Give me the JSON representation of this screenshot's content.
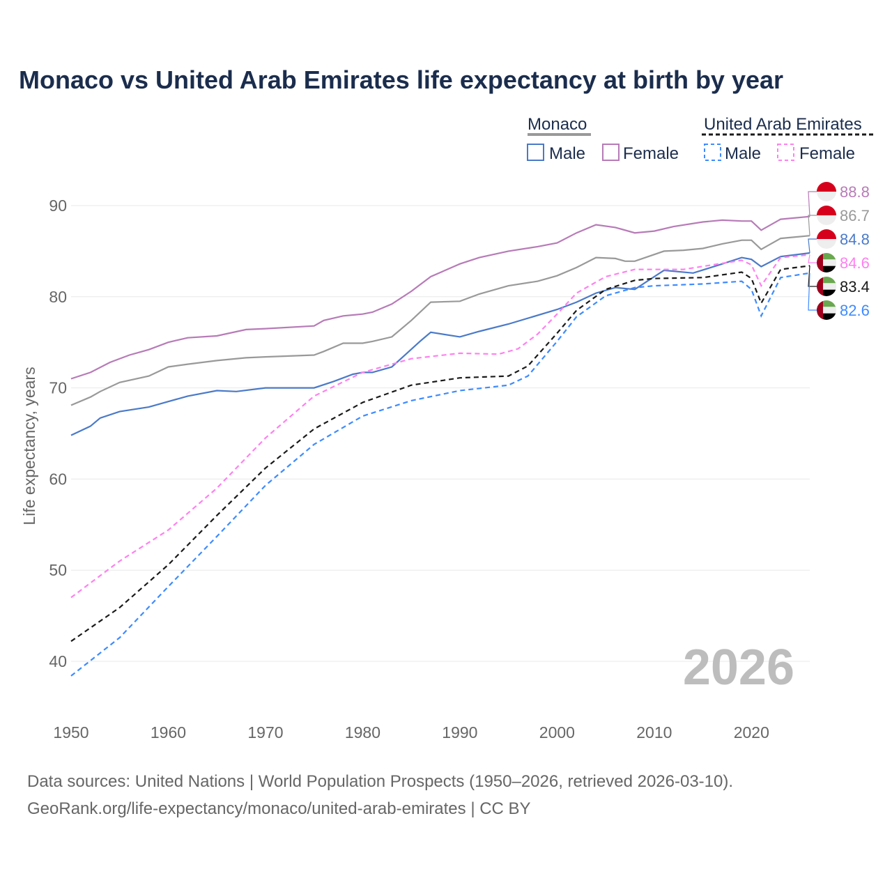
{
  "title": "Monaco vs United Arab Emirates life expectancy at birth by year",
  "footer": {
    "line1": "Data sources: United Nations | World Population Prospects (1950–2026, retrieved 2026-03-10).",
    "line2": "GeoRank.org/life-expectancy/monaco/united-arab-emirates | CC BY"
  },
  "year_watermark": "2026",
  "legend": {
    "group1": "Monaco",
    "group2": "United Arab Emirates",
    "male": "Male",
    "female": "Female"
  },
  "chart_data": {
    "type": "line",
    "title": "Monaco vs United Arab Emirates life expectancy at birth by year",
    "xlabel": "",
    "ylabel": "Life expectancy, years",
    "xlim": [
      1950,
      2026
    ],
    "ylim": [
      36,
      92
    ],
    "xticks": [
      1950,
      1960,
      1970,
      1980,
      1990,
      2000,
      2010,
      2020
    ],
    "yticks": [
      40,
      50,
      60,
      70,
      80,
      90
    ],
    "grid": true,
    "legend_position": "top-right",
    "series": [
      {
        "name": "Monaco Female",
        "color": "#b77bb7",
        "dash": false,
        "end_label": "88.8",
        "flag": "monaco",
        "x": [
          1950,
          1952,
          1954,
          1956,
          1958,
          1960,
          1962,
          1965,
          1968,
          1970,
          1975,
          1976,
          1978,
          1980,
          1981,
          1983,
          1985,
          1987,
          1990,
          1992,
          1995,
          1998,
          2000,
          2002,
          2004,
          2006,
          2008,
          2010,
          2012,
          2015,
          2017,
          2019,
          2020,
          2021,
          2023,
          2026
        ],
        "y": [
          71.0,
          71.7,
          72.8,
          73.6,
          74.2,
          75.0,
          75.5,
          75.7,
          76.4,
          76.5,
          76.8,
          77.4,
          77.9,
          78.1,
          78.3,
          79.2,
          80.6,
          82.2,
          83.6,
          84.3,
          85.0,
          85.5,
          85.9,
          87.0,
          87.9,
          87.6,
          87.0,
          87.2,
          87.7,
          88.2,
          88.4,
          88.3,
          88.3,
          87.3,
          88.5,
          88.8
        ]
      },
      {
        "name": "Monaco",
        "color": "#999999",
        "dash": false,
        "end_label": "86.7",
        "flag": "monaco",
        "x": [
          1950,
          1952,
          1953,
          1955,
          1958,
          1960,
          1962,
          1965,
          1968,
          1970,
          1975,
          1976,
          1978,
          1980,
          1981,
          1983,
          1985,
          1987,
          1990,
          1992,
          1995,
          1998,
          2000,
          2002,
          2004,
          2006,
          2007,
          2008,
          2011,
          2013,
          2015,
          2017,
          2019,
          2020,
          2021,
          2023,
          2026
        ],
        "y": [
          68.1,
          69.0,
          69.6,
          70.6,
          71.3,
          72.3,
          72.6,
          73.0,
          73.3,
          73.4,
          73.6,
          74.0,
          74.9,
          74.9,
          75.1,
          75.6,
          77.4,
          79.4,
          79.5,
          80.3,
          81.2,
          81.7,
          82.3,
          83.2,
          84.3,
          84.2,
          83.9,
          83.9,
          85.0,
          85.1,
          85.3,
          85.8,
          86.2,
          86.2,
          85.2,
          86.4,
          86.7
        ]
      },
      {
        "name": "Monaco Male",
        "color": "#4a7ac8",
        "dash": false,
        "end_label": "84.8",
        "flag": "monaco",
        "x": [
          1950,
          1952,
          1953,
          1955,
          1958,
          1960,
          1962,
          1965,
          1967,
          1970,
          1975,
          1977,
          1979,
          1980,
          1981,
          1983,
          1986,
          1987,
          1990,
          1992,
          1995,
          2000,
          2002,
          2004,
          2006,
          2008,
          2011,
          2014,
          2017,
          2019,
          2020,
          2021,
          2023,
          2026
        ],
        "y": [
          64.8,
          65.8,
          66.7,
          67.4,
          67.9,
          68.5,
          69.1,
          69.7,
          69.6,
          70.0,
          70.0,
          70.7,
          71.5,
          71.7,
          71.7,
          72.3,
          75.2,
          76.1,
          75.6,
          76.2,
          77.0,
          78.6,
          79.4,
          80.4,
          81.0,
          80.8,
          82.9,
          82.6,
          83.6,
          84.3,
          84.1,
          83.3,
          84.4,
          84.8
        ]
      },
      {
        "name": "United Arab Emirates Female",
        "color": "#ff80f0",
        "dash": true,
        "end_label": "84.6",
        "flag": "uae",
        "x": [
          1950,
          1955,
          1960,
          1965,
          1970,
          1975,
          1980,
          1985,
          1990,
          1994,
          1996,
          1998,
          2000,
          2002,
          2005,
          2008,
          2013,
          2019,
          2020,
          2021,
          2023,
          2026
        ],
        "y": [
          47.0,
          51.0,
          54.4,
          59.0,
          64.5,
          69.1,
          71.7,
          73.2,
          73.8,
          73.7,
          74.3,
          75.9,
          78.1,
          80.4,
          82.2,
          83.0,
          83.0,
          84.0,
          83.5,
          81.2,
          84.3,
          84.6
        ]
      },
      {
        "name": "United Arab Emirates",
        "color": "#1a1a1a",
        "dash": true,
        "end_label": "83.4",
        "flag": "uae",
        "x": [
          1950,
          1955,
          1960,
          1965,
          1970,
          1975,
          1980,
          1985,
          1990,
          1995,
          1997,
          2000,
          2002,
          2005,
          2008,
          2010,
          2015,
          2019,
          2020,
          2021,
          2023,
          2026
        ],
        "y": [
          42.2,
          45.9,
          50.6,
          56.0,
          61.2,
          65.5,
          68.4,
          70.3,
          71.1,
          71.3,
          72.4,
          76.0,
          78.5,
          80.8,
          81.8,
          82.0,
          82.1,
          82.7,
          82.0,
          79.3,
          83.0,
          83.4
        ]
      },
      {
        "name": "United Arab Emirates Male",
        "color": "#3d8bff",
        "dash": true,
        "end_label": "82.6",
        "flag": "uae",
        "x": [
          1950,
          1955,
          1960,
          1965,
          1970,
          1975,
          1980,
          1985,
          1990,
          1995,
          1997,
          2000,
          2002,
          2005,
          2008,
          2010,
          2015,
          2019,
          2020,
          2021,
          2023,
          2026
        ],
        "y": [
          38.4,
          42.6,
          48.2,
          53.7,
          59.3,
          63.8,
          66.9,
          68.6,
          69.7,
          70.3,
          71.3,
          75.1,
          77.8,
          80.1,
          81.0,
          81.2,
          81.4,
          81.7,
          80.8,
          77.9,
          82.1,
          82.6
        ]
      }
    ]
  }
}
